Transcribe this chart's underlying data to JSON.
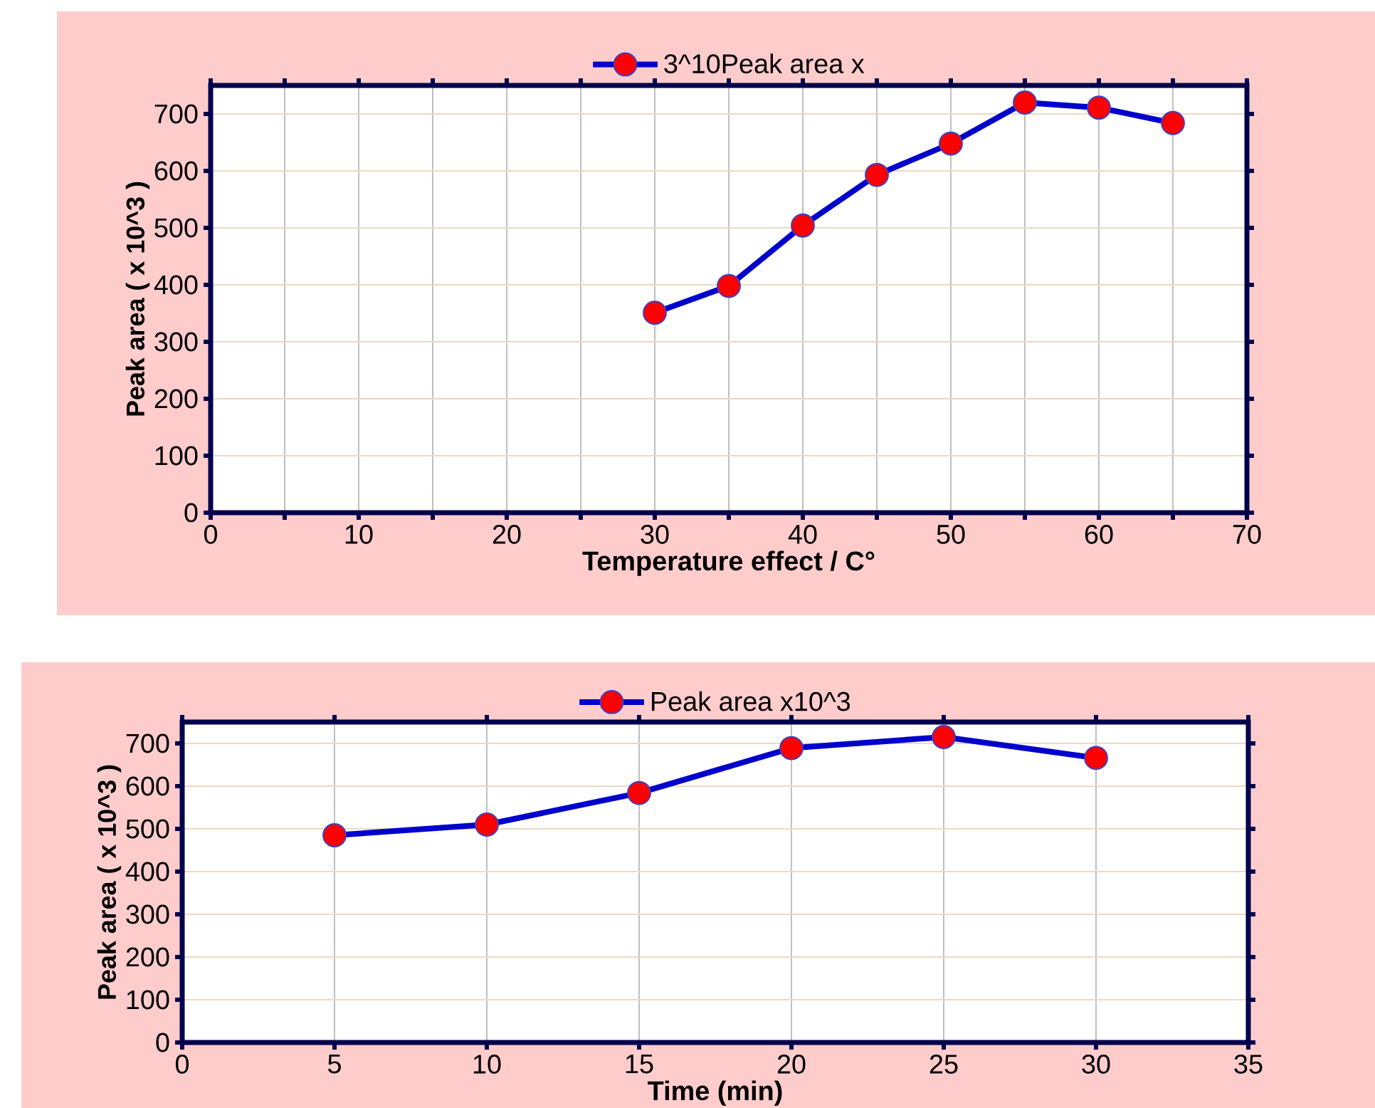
{
  "chart_data": [
    {
      "type": "line",
      "xlabel": "Temperature effect / C°",
      "ylabel": "Peak area ( x 10^3 )",
      "x": [
        30,
        35,
        40,
        45,
        50,
        55,
        60,
        65
      ],
      "series": [
        {
          "name": "3^10Peak area  x",
          "color": "#0000cc",
          "values": [
            351,
            398,
            504,
            593,
            648,
            720,
            711,
            684
          ]
        }
      ],
      "xlim": [
        0,
        70
      ],
      "ylim": [
        0,
        750
      ],
      "xticks": [
        0,
        {
          "value": 5,
          "label": null
        },
        10,
        {
          "value": 15,
          "label": null
        },
        20,
        {
          "value": 25,
          "label": null
        },
        30,
        {
          "value": 35,
          "label": null
        },
        40,
        {
          "value": 45,
          "label": null
        },
        50,
        {
          "value": 55,
          "label": null
        },
        60,
        {
          "value": 65,
          "label": null
        },
        70
      ],
      "yticks": [
        0,
        100,
        200,
        300,
        400,
        500,
        600,
        700
      ],
      "grid": true,
      "legend": "top",
      "marker": "circle",
      "line_style": "solid"
    },
    {
      "type": "line",
      "xlabel": "Time (min)",
      "ylabel": "Peak area ( x 10^3 )",
      "x": [
        5,
        10,
        15,
        20,
        25,
        30
      ],
      "series": [
        {
          "name": "Peak area  x10^3",
          "color": "#0000cc",
          "values": [
            485,
            510,
            584,
            689,
            715,
            666
          ]
        }
      ],
      "xlim": [
        0,
        35
      ],
      "ylim": [
        0,
        750
      ],
      "xticks": [
        0,
        5,
        10,
        15,
        20,
        25,
        30,
        35
      ],
      "yticks": [
        0,
        100,
        200,
        300,
        400,
        500,
        600,
        700
      ],
      "grid": true,
      "legend": "top",
      "marker": "circle",
      "line_style": "solid"
    }
  ]
}
